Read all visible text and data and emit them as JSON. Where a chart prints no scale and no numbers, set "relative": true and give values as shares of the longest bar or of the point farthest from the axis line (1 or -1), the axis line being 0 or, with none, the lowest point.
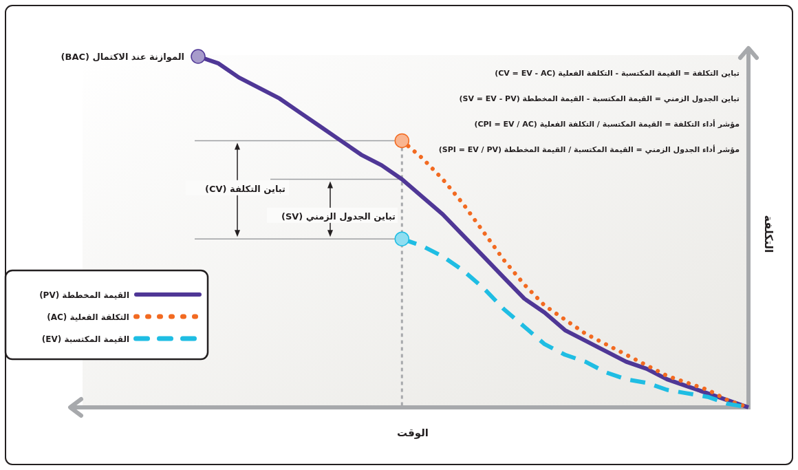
{
  "chart_data": {
    "type": "line",
    "relative": true,
    "xlabel": "الوقت",
    "ylabel": "التكلفة",
    "legend": "bottom left",
    "categories": [
      null,
      null,
      null,
      null,
      null,
      null,
      null,
      null,
      null,
      null,
      null,
      null,
      null,
      null,
      null,
      null,
      null,
      null,
      null,
      null,
      null,
      null,
      null,
      null,
      null,
      null,
      null,
      null
    ],
    "series": [
      {
        "name": "القيمة المخططة (PV)",
        "color": "#4f3796",
        "line_style": "solid",
        "values": [
          1,
          0.98,
          0.94,
          0.91,
          0.88,
          0.84,
          0.8,
          0.76,
          0.72,
          0.69,
          0.65,
          0.6,
          0.55,
          0.49,
          0.43,
          0.37,
          0.31,
          0.27,
          0.22,
          0.19,
          0.16,
          0.13,
          0.11,
          0.08,
          0.06,
          0.04,
          0.02,
          0
        ]
      },
      {
        "name": "التكلفة الفعلية (AC)",
        "color": "#f26a21",
        "line_style": "dotted",
        "values": [
          null,
          null,
          null,
          null,
          null,
          null,
          null,
          null,
          null,
          null,
          0.76,
          0.71,
          0.65,
          0.58,
          0.5,
          0.42,
          0.35,
          0.29,
          0.25,
          0.21,
          0.18,
          0.15,
          0.12,
          0.09,
          0.07,
          0.05,
          0.02,
          0
        ]
      },
      {
        "name": "القيمة المكتسبة (EV)",
        "color": "#1fbde3",
        "line_style": "dashed",
        "values": [
          null,
          null,
          null,
          null,
          null,
          null,
          null,
          null,
          null,
          null,
          0.48,
          0.46,
          0.43,
          0.39,
          0.34,
          0.28,
          0.23,
          0.18,
          0.15,
          0.13,
          0.1,
          0.08,
          0.07,
          0.05,
          0.04,
          0.03,
          0.01,
          0
        ]
      }
    ],
    "annotations": [
      "تباين التكلفة = القيمة المكتسبة - التكلفة الفعلية (CV = EV - AC)",
      "تباين الجدول الزمني = القيمة المكتسبة - القيمة المخططة (SV = EV - PV)",
      "مؤشر أداء التكلفة = القيمة المكتسبة / التكلفة الفعلية (CPI = EV / AC)",
      "مؤشر أداء الجدول الزمني = القيمة المكتسبة / القيمة المخططة (SPI = EV / PV)",
      "الموازنة عند الاكتمال (BAC)",
      "تباين التكلفة (CV)",
      "تباين الجدول الزمني (SV)"
    ]
  }
}
